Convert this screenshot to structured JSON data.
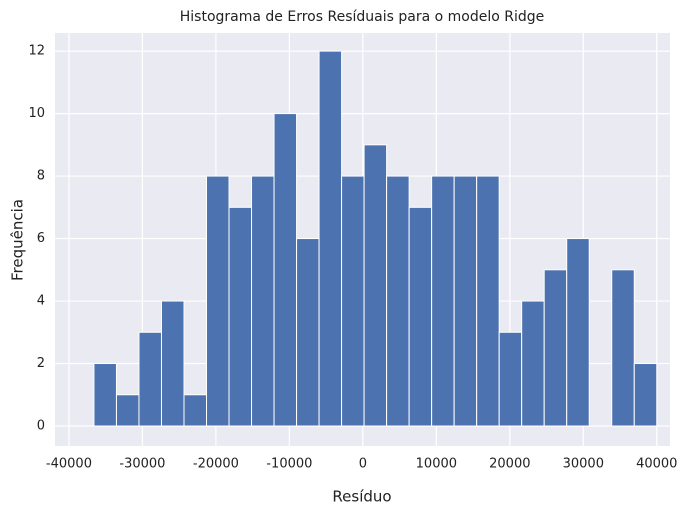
{
  "chart_data": {
    "type": "histogram",
    "title": "Histograma de Erros Resíduais para o modelo Ridge",
    "xlabel": "Resíduo",
    "ylabel": "Frequência",
    "bins": [
      -36600,
      -33536,
      -30472,
      -27408,
      -24344,
      -21280,
      -18216,
      -15152,
      -12088,
      -9024,
      -5960,
      -2896,
      168,
      3232,
      6296,
      9360,
      12424,
      15488,
      18552,
      21616,
      24680,
      27744,
      30808,
      33872,
      36936,
      40000
    ],
    "counts": [
      2,
      1,
      3,
      4,
      1,
      8,
      7,
      8,
      10,
      6,
      12,
      8,
      9,
      8,
      7,
      8,
      8,
      8,
      3,
      4,
      5,
      6,
      0,
      5,
      2
    ],
    "color": "#4c72b0",
    "xlim": [
      -41900,
      41800
    ],
    "ylim": [
      -0.64,
      12.58
    ],
    "xticks": [
      -40000,
      -30000,
      -20000,
      -10000,
      0,
      10000,
      20000,
      30000,
      40000
    ],
    "yticks": [
      0,
      2,
      4,
      6,
      8,
      10,
      12
    ],
    "grid": true
  }
}
